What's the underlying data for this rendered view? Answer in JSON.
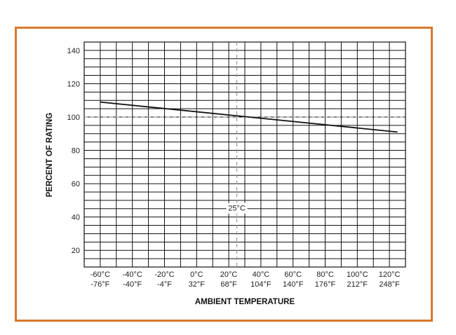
{
  "chart_data": {
    "type": "line",
    "title": "",
    "xlabel": "AMBIENT TEMPERATURE",
    "ylabel": "PERCENT OF RATING",
    "xlim": [
      -70,
      130
    ],
    "ylim": [
      10,
      145
    ],
    "grid": true,
    "x_ticks": [
      {
        "value": -60,
        "c": "-60°C",
        "f": "-76°F"
      },
      {
        "value": -40,
        "c": "-40°C",
        "f": "-40°F"
      },
      {
        "value": -20,
        "c": "-20°C",
        "f": "-4°F"
      },
      {
        "value": 0,
        "c": "0°C",
        "f": "32°F"
      },
      {
        "value": 20,
        "c": "20°C",
        "f": "68°F"
      },
      {
        "value": 40,
        "c": "40°C",
        "f": "104°F"
      },
      {
        "value": 60,
        "c": "60°C",
        "f": "140°F"
      },
      {
        "value": 80,
        "c": "80°C",
        "f": "176°F"
      },
      {
        "value": 100,
        "c": "100°C",
        "f": "212°F"
      },
      {
        "value": 120,
        "c": "120°C",
        "f": "248°F"
      }
    ],
    "y_ticks": [
      20,
      40,
      60,
      80,
      100,
      120,
      140
    ],
    "series": [
      {
        "values": [
          [
            -60,
            109
          ],
          [
            125,
            91
          ]
        ],
        "color": "#111111"
      }
    ],
    "reference_lines": [
      {
        "axis": "y",
        "value": 100,
        "style": "dashed",
        "color": "#9a9a9a"
      },
      {
        "axis": "x",
        "value": 25,
        "style": "dashed",
        "color": "#9a9a9a",
        "label": "25°C"
      }
    ]
  },
  "colors": {
    "frame": "#d9782d",
    "grid": "#111111"
  }
}
